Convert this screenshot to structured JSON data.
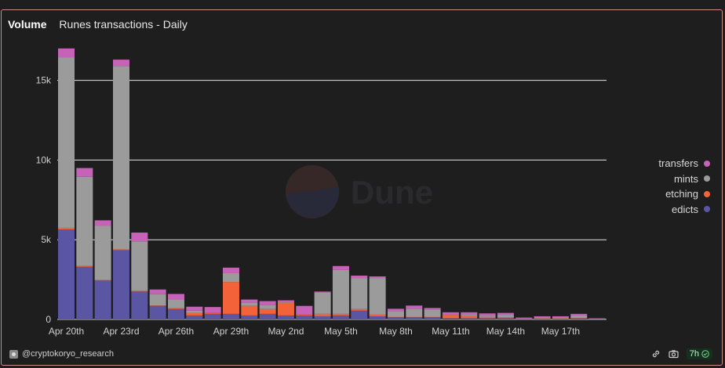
{
  "header": {
    "tab": "Volume",
    "title": "Runes transactions - Daily"
  },
  "watermark": {
    "text": "Dune"
  },
  "footer": {
    "user": "@cryptokoryo_research",
    "refresh": "7h"
  },
  "chart_data": {
    "type": "bar",
    "stacked": true,
    "grid": true,
    "legend_position": "right",
    "ylim": [
      0,
      17500
    ],
    "yticks": [
      {
        "value": 0,
        "label": "0"
      },
      {
        "value": 5000,
        "label": "5k"
      },
      {
        "value": 10000,
        "label": "10k"
      },
      {
        "value": 15000,
        "label": "15k"
      }
    ],
    "xtick_labels": [
      "Apr 20th",
      "Apr 23rd",
      "Apr 26th",
      "Apr 29th",
      "May 2nd",
      "May 5th",
      "May 8th",
      "May 11th",
      "May 14th",
      "May 17th"
    ],
    "xtick_index": [
      0,
      3,
      6,
      9,
      12,
      15,
      18,
      21,
      24,
      27
    ],
    "categories": [
      "Apr 20",
      "Apr 21",
      "Apr 22",
      "Apr 23",
      "Apr 24",
      "Apr 25",
      "Apr 26",
      "Apr 27",
      "Apr 28",
      "Apr 29",
      "Apr 30",
      "May 1",
      "May 2",
      "May 3",
      "May 4",
      "May 5",
      "May 6",
      "May 7",
      "May 8",
      "May 9",
      "May 10",
      "May 11",
      "May 12",
      "May 13",
      "May 14",
      "May 15",
      "May 16",
      "May 17",
      "May 18",
      "May 19"
    ],
    "series": [
      {
        "name": "edicts",
        "color": "#5b56a3",
        "values": [
          5650,
          3300,
          2450,
          4350,
          1750,
          850,
          650,
          250,
          350,
          350,
          250,
          350,
          250,
          250,
          200,
          250,
          550,
          200,
          150,
          150,
          150,
          80,
          80,
          80,
          80,
          20,
          50,
          50,
          80,
          20
        ]
      },
      {
        "name": "etching",
        "color": "#f4623a",
        "values": [
          100,
          50,
          20,
          50,
          50,
          30,
          50,
          150,
          80,
          2000,
          600,
          300,
          800,
          50,
          150,
          100,
          100,
          100,
          20,
          20,
          20,
          200,
          150,
          80,
          60,
          20,
          20,
          20,
          20,
          0
        ]
      },
      {
        "name": "mints",
        "color": "#9b9b9b",
        "values": [
          10700,
          5600,
          3400,
          11500,
          3100,
          700,
          550,
          150,
          0,
          550,
          200,
          250,
          50,
          0,
          1350,
          2750,
          1950,
          2300,
          350,
          500,
          450,
          50,
          100,
          100,
          150,
          20,
          50,
          50,
          150,
          30
        ]
      },
      {
        "name": "transfers",
        "color": "#c662b8",
        "values": [
          550,
          550,
          350,
          400,
          550,
          300,
          350,
          250,
          350,
          350,
          200,
          250,
          100,
          550,
          50,
          250,
          150,
          100,
          150,
          200,
          100,
          120,
          120,
          120,
          120,
          60,
          80,
          80,
          100,
          20
        ]
      }
    ]
  }
}
